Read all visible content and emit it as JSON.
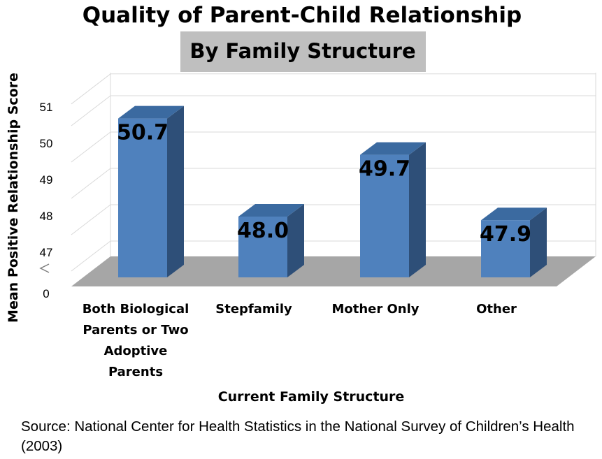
{
  "chart_data": {
    "type": "bar",
    "title": "Quality of Parent-Child Relationship",
    "subtitle": "By Family Structure",
    "xlabel": "Current Family Structure",
    "ylabel": "Mean Positive Relationship Score",
    "categories": [
      [
        "Both Biological",
        "Parents or Two",
        "Adoptive",
        "Parents"
      ],
      [
        "Stepfamily"
      ],
      [
        "Mother Only"
      ],
      [
        "Other"
      ]
    ],
    "values": [
      50.7,
      48.0,
      49.7,
      47.9
    ],
    "value_labels": [
      "50.7",
      "48.0",
      "49.7",
      "47.9"
    ],
    "y_ticks": [
      "51",
      "50",
      "49",
      "48",
      "47"
    ],
    "y_tick_values": [
      51,
      50,
      49,
      48,
      47
    ],
    "y_zero_label": "0",
    "axis_break": true,
    "ylim": [
      46.6,
      51.4
    ],
    "grid": true
  },
  "source": "Source:  National Center for Health Statistics in the National Survey of Children’s Health (2003)",
  "colors": {
    "bar_front": "#4f81bd",
    "bar_side": "#2e4f78",
    "bar_top": "#3b6aa0",
    "floor": "#a6a6a6",
    "subtitle_bg": "#bfbfbf",
    "grid": "#d9d9d9"
  }
}
